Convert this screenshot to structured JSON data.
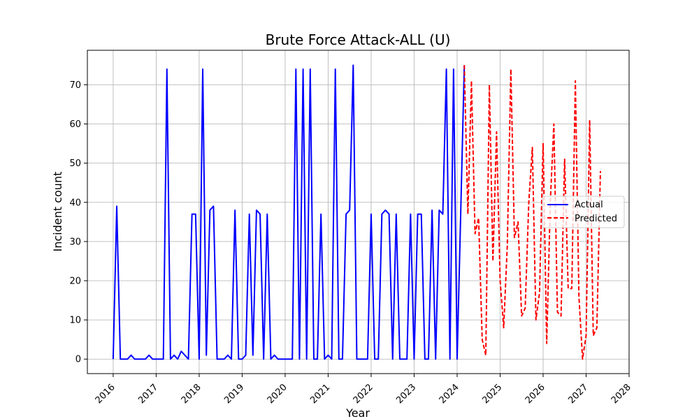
{
  "chart_data": {
    "type": "line",
    "title": "Brute Force Attack-ALL (U)",
    "xlabel": "Year",
    "ylabel": "Incident count",
    "x_ticks": [
      "2016",
      "2017",
      "2018",
      "2019",
      "2020",
      "2021",
      "2022",
      "2023",
      "2024",
      "2025",
      "2026",
      "2027",
      "2028"
    ],
    "y_ticks": [
      "0",
      "10",
      "20",
      "30",
      "40",
      "50",
      "60",
      "70"
    ],
    "xlim": [
      2015.4,
      2028.0
    ],
    "ylim": [
      -3.7,
      78.8
    ],
    "grid": true,
    "legend_position": "center-right",
    "series": [
      {
        "name": "Actual",
        "color": "#0000ff",
        "style": "solid",
        "points": [
          [
            2016.0,
            0
          ],
          [
            2016.083,
            39
          ],
          [
            2016.167,
            0
          ],
          [
            2016.25,
            0
          ],
          [
            2016.333,
            0
          ],
          [
            2016.417,
            1
          ],
          [
            2016.5,
            0
          ],
          [
            2016.583,
            0
          ],
          [
            2016.667,
            0
          ],
          [
            2016.75,
            0
          ],
          [
            2016.833,
            1
          ],
          [
            2016.917,
            0
          ],
          [
            2017.0,
            0
          ],
          [
            2017.083,
            0
          ],
          [
            2017.167,
            0
          ],
          [
            2017.25,
            74
          ],
          [
            2017.333,
            0
          ],
          [
            2017.417,
            1
          ],
          [
            2017.5,
            0
          ],
          [
            2017.583,
            2
          ],
          [
            2017.667,
            1
          ],
          [
            2017.75,
            0
          ],
          [
            2017.833,
            37
          ],
          [
            2017.917,
            37
          ],
          [
            2018.0,
            0
          ],
          [
            2018.083,
            74
          ],
          [
            2018.167,
            1
          ],
          [
            2018.25,
            38
          ],
          [
            2018.333,
            39
          ],
          [
            2018.417,
            0
          ],
          [
            2018.5,
            0
          ],
          [
            2018.583,
            0
          ],
          [
            2018.667,
            1
          ],
          [
            2018.75,
            0
          ],
          [
            2018.833,
            38
          ],
          [
            2018.917,
            0
          ],
          [
            2019.0,
            0
          ],
          [
            2019.083,
            1
          ],
          [
            2019.167,
            37
          ],
          [
            2019.25,
            1
          ],
          [
            2019.333,
            38
          ],
          [
            2019.417,
            37
          ],
          [
            2019.5,
            0
          ],
          [
            2019.583,
            37
          ],
          [
            2019.667,
            0
          ],
          [
            2019.75,
            1
          ],
          [
            2019.833,
            0
          ],
          [
            2019.917,
            0
          ],
          [
            2020.0,
            0
          ],
          [
            2020.083,
            0
          ],
          [
            2020.167,
            0
          ],
          [
            2020.25,
            74
          ],
          [
            2020.333,
            0
          ],
          [
            2020.417,
            74
          ],
          [
            2020.5,
            0
          ],
          [
            2020.583,
            74
          ],
          [
            2020.667,
            0
          ],
          [
            2020.75,
            0
          ],
          [
            2020.833,
            37
          ],
          [
            2020.917,
            0
          ],
          [
            2021.0,
            1
          ],
          [
            2021.083,
            0
          ],
          [
            2021.167,
            74
          ],
          [
            2021.25,
            0
          ],
          [
            2021.333,
            0
          ],
          [
            2021.417,
            37
          ],
          [
            2021.5,
            38
          ],
          [
            2021.583,
            75
          ],
          [
            2021.667,
            0
          ],
          [
            2021.75,
            0
          ],
          [
            2021.833,
            0
          ],
          [
            2021.917,
            0
          ],
          [
            2022.0,
            37
          ],
          [
            2022.083,
            0
          ],
          [
            2022.167,
            0
          ],
          [
            2022.25,
            37
          ],
          [
            2022.333,
            38
          ],
          [
            2022.417,
            37
          ],
          [
            2022.5,
            0
          ],
          [
            2022.583,
            37
          ],
          [
            2022.667,
            0
          ],
          [
            2022.75,
            0
          ],
          [
            2022.833,
            0
          ],
          [
            2022.917,
            37
          ],
          [
            2023.0,
            0
          ],
          [
            2023.083,
            37
          ],
          [
            2023.167,
            37
          ],
          [
            2023.25,
            0
          ],
          [
            2023.333,
            0
          ],
          [
            2023.417,
            38
          ],
          [
            2023.5,
            0
          ],
          [
            2023.583,
            38
          ],
          [
            2023.667,
            37
          ],
          [
            2023.75,
            74
          ],
          [
            2023.833,
            0
          ],
          [
            2023.917,
            74
          ],
          [
            2024.0,
            0
          ],
          [
            2024.083,
            37
          ],
          [
            2024.167,
            75
          ]
        ]
      },
      {
        "name": "Predicted",
        "color": "#ff0000",
        "style": "dashed",
        "points": [
          [
            2024.167,
            75
          ],
          [
            2024.25,
            37
          ],
          [
            2024.333,
            71
          ],
          [
            2024.417,
            32
          ],
          [
            2024.5,
            36
          ],
          [
            2024.583,
            5
          ],
          [
            2024.667,
            1
          ],
          [
            2024.75,
            70
          ],
          [
            2024.833,
            25
          ],
          [
            2024.917,
            58
          ],
          [
            2025.0,
            20
          ],
          [
            2025.083,
            8
          ],
          [
            2025.167,
            29
          ],
          [
            2025.25,
            74
          ],
          [
            2025.333,
            31
          ],
          [
            2025.417,
            35
          ],
          [
            2025.5,
            11
          ],
          [
            2025.583,
            13
          ],
          [
            2025.667,
            40
          ],
          [
            2025.75,
            54
          ],
          [
            2025.833,
            10
          ],
          [
            2025.917,
            17
          ],
          [
            2026.0,
            55
          ],
          [
            2026.083,
            4
          ],
          [
            2026.167,
            40
          ],
          [
            2026.25,
            60
          ],
          [
            2026.333,
            12
          ],
          [
            2026.417,
            11
          ],
          [
            2026.5,
            51
          ],
          [
            2026.583,
            18
          ],
          [
            2026.667,
            18
          ],
          [
            2026.75,
            71
          ],
          [
            2026.833,
            16
          ],
          [
            2026.917,
            0
          ],
          [
            2027.0,
            6
          ],
          [
            2027.083,
            61
          ],
          [
            2027.167,
            6
          ],
          [
            2027.25,
            8
          ],
          [
            2027.333,
            48
          ]
        ]
      }
    ]
  }
}
